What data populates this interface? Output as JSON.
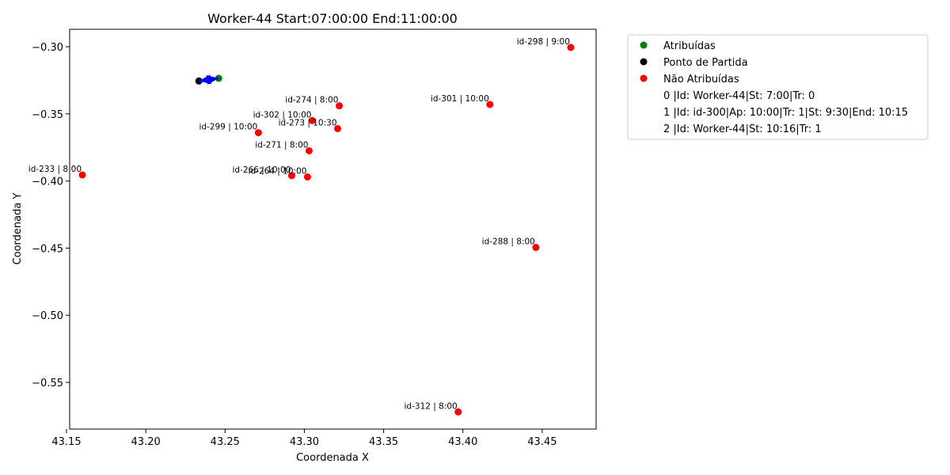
{
  "chart_data": {
    "type": "scatter",
    "title": "Worker-44 Start:07:00:00 End:11:00:00",
    "xlabel": "Coordenada X",
    "ylabel": "Coordenada Y",
    "xlim": [
      43.152,
      43.484
    ],
    "ylim": [
      -0.5848,
      -0.287
    ],
    "xticks": [
      43.15,
      43.2,
      43.25,
      43.3,
      43.35,
      43.4,
      43.45
    ],
    "xtick_labels": [
      "43.15",
      "43.20",
      "43.25",
      "43.30",
      "43.35",
      "43.40",
      "43.45"
    ],
    "yticks": [
      -0.3,
      -0.35,
      -0.4,
      -0.45,
      -0.5,
      -0.55
    ],
    "ytick_labels": [
      "−0.30",
      "−0.35",
      "−0.40",
      "−0.45",
      "−0.50",
      "−0.55"
    ],
    "grid": false,
    "legend_position": "outside-right-top",
    "colors": {
      "assigned": "#008000",
      "start": "#000000",
      "unassigned": "#ff0000",
      "route": "#0000ff"
    },
    "series": [
      {
        "name": "Atribuídas",
        "color": "#008000",
        "points": [
          {
            "x": 43.246,
            "y": -0.3235
          }
        ]
      },
      {
        "name": "Ponto de Partida",
        "color": "#000000",
        "points": [
          {
            "x": 43.2335,
            "y": -0.3255
          }
        ]
      },
      {
        "name": "Não Atribuídas",
        "color": "#ff0000",
        "points": [
          {
            "x": 43.468,
            "y": -0.3005,
            "label": "id-298 | 9:00"
          },
          {
            "x": 43.322,
            "y": -0.344,
            "label": "id-274 | 8:00"
          },
          {
            "x": 43.417,
            "y": -0.343,
            "label": "id-301 | 10:00"
          },
          {
            "x": 43.305,
            "y": -0.355,
            "label": "id-302 | 10:00"
          },
          {
            "x": 43.321,
            "y": -0.361,
            "label": "id-273 | 10:30"
          },
          {
            "x": 43.271,
            "y": -0.364,
            "label": "id-299 | 10:00"
          },
          {
            "x": 43.303,
            "y": -0.3775,
            "label": "id-271 | 8:00"
          },
          {
            "x": 43.16,
            "y": -0.3955,
            "label": "id-233 | 8:00"
          },
          {
            "x": 43.292,
            "y": -0.396,
            "label": "id-266 | 10:00"
          },
          {
            "x": 43.302,
            "y": -0.397,
            "label": "id-264 | 10:00"
          },
          {
            "x": 43.446,
            "y": -0.4495,
            "label": "id-288 | 8:00"
          },
          {
            "x": 43.397,
            "y": -0.572,
            "label": "id-312 | 8:00"
          }
        ]
      }
    ],
    "route_arrows": [
      {
        "from": {
          "x": 43.2335,
          "y": -0.3255
        },
        "to": {
          "x": 43.246,
          "y": -0.3235
        }
      },
      {
        "from": {
          "x": 43.246,
          "y": -0.3235
        },
        "to": {
          "x": 43.2335,
          "y": -0.3255
        }
      }
    ],
    "legend": [
      {
        "label": "Atribuídas",
        "marker": true,
        "color": "#008000"
      },
      {
        "label": "Ponto de Partida",
        "marker": true,
        "color": "#000000"
      },
      {
        "label": "Não Atribuídas",
        "marker": true,
        "color": "#ff0000"
      },
      {
        "label": "0 |Id: Worker-44|St: 7:00|Tr: 0",
        "marker": false
      },
      {
        "label": "1 |Id: id-300|Ap: 10:00|Tr: 1|St: 9:30|End: 10:15",
        "marker": false
      },
      {
        "label": "2 |Id: Worker-44|St: 10:16|Tr: 1",
        "marker": false
      }
    ]
  }
}
